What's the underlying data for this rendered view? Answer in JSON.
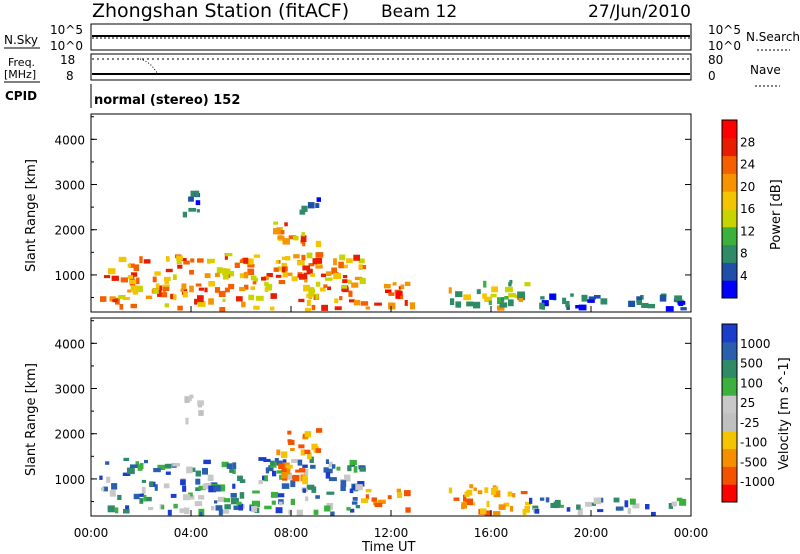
{
  "header": {
    "station": "Zhongshan Station (fitACF)",
    "beam": "Beam 12",
    "date": "27/Jun/2010"
  },
  "noise_panel": {
    "left_label": "N.Sky",
    "right_label": "N.Search",
    "left_ticks": [
      "10^5",
      "10^0"
    ],
    "right_ticks": [
      "10^5",
      "10^0"
    ]
  },
  "freq_panel": {
    "left_label_1": "Freq.",
    "left_label_2": "[MHz]",
    "right_label": "Nave",
    "left_ticks": [
      "18",
      "8"
    ],
    "right_ticks": [
      "80",
      "0"
    ]
  },
  "cpid": {
    "label": "CPID",
    "value": "normal (stereo) 152"
  },
  "colors": {
    "power_scale": [
      "#0000ff",
      "#1f4fa8",
      "#2f8a66",
      "#3cb03c",
      "#c8d400",
      "#f5c400",
      "#f59300",
      "#f55f00",
      "#e81c00",
      "#ff0000"
    ],
    "velocity_scale": [
      "#ff0000",
      "#f55200",
      "#f58f00",
      "#f5c400",
      "#c0c0c0",
      "#c8c8c8",
      "#3cb03c",
      "#2f8a66",
      "#2a5fae",
      "#1c3ccc"
    ]
  },
  "chart_data": [
    {
      "type": "heatmap",
      "title": "Power",
      "xlabel": "",
      "ylabel": "Slant Range [km]",
      "xlim": [
        "00:00",
        "24:00"
      ],
      "ylim": [
        180,
        4560
      ],
      "x_ticks": [
        "00:00",
        "04:00",
        "08:00",
        "12:00",
        "16:00",
        "20:00",
        "00:00"
      ],
      "y_ticks": [
        1000,
        2000,
        3000,
        4000
      ],
      "colorbar": {
        "label": "Power [dB]",
        "ticks": [
          "28",
          "24",
          "20",
          "16",
          "12",
          "8",
          "4"
        ]
      },
      "scatter_regions": [
        {
          "t_start": 0.3,
          "t_end": 10.8,
          "r_min": 200,
          "r_max": 1500,
          "level": "mixed",
          "dominant": "orange/red"
        },
        {
          "t_start": 7.2,
          "t_end": 9.0,
          "r_min": 1000,
          "r_max": 2200,
          "level": "high",
          "dominant": "orange/red"
        },
        {
          "t_start": 3.6,
          "t_end": 4.6,
          "r_min": 2300,
          "r_max": 2900,
          "level": "low",
          "dominant": "blue"
        },
        {
          "t_start": 8.3,
          "t_end": 9.1,
          "r_min": 2400,
          "r_max": 2800,
          "level": "low",
          "dominant": "blue"
        },
        {
          "t_start": 10.8,
          "t_end": 12.8,
          "r_min": 250,
          "r_max": 900,
          "level": "high",
          "dominant": "red"
        },
        {
          "t_start": 14.2,
          "t_end": 17.5,
          "r_min": 250,
          "r_max": 900,
          "level": "mixed",
          "dominant": "green/orange"
        },
        {
          "t_start": 17.5,
          "t_end": 23.6,
          "r_min": 250,
          "r_max": 600,
          "level": "low",
          "dominant": "blue/green"
        }
      ]
    },
    {
      "type": "heatmap",
      "title": "Velocity",
      "xlabel": "Time UT",
      "ylabel": "Slant Range [km]",
      "xlim": [
        "00:00",
        "24:00"
      ],
      "ylim": [
        180,
        4560
      ],
      "x_ticks": [
        "00:00",
        "04:00",
        "08:00",
        "12:00",
        "16:00",
        "20:00",
        "00:00"
      ],
      "y_ticks": [
        1000,
        2000,
        3000,
        4000
      ],
      "colorbar": {
        "label": "Velocity [m s^-1]",
        "ticks": [
          "1000",
          "500",
          "100",
          "25",
          "-25",
          "-100",
          "-500",
          "-1000"
        ]
      },
      "scatter_regions": [
        {
          "t_start": 0.3,
          "t_end": 10.8,
          "r_min": 200,
          "r_max": 1500,
          "dominant": "green/blue/orange"
        },
        {
          "t_start": 7.2,
          "t_end": 9.0,
          "r_min": 1000,
          "r_max": 2200,
          "dominant": "orange"
        },
        {
          "t_start": 3.6,
          "t_end": 4.6,
          "r_min": 2300,
          "r_max": 2900,
          "dominant": "grey"
        },
        {
          "t_start": 10.8,
          "t_end": 12.8,
          "r_min": 250,
          "r_max": 900,
          "dominant": "orange"
        },
        {
          "t_start": 14.2,
          "t_end": 17.5,
          "r_min": 250,
          "r_max": 900,
          "dominant": "orange"
        },
        {
          "t_start": 17.5,
          "t_end": 23.6,
          "r_min": 250,
          "r_max": 600,
          "dominant": "green"
        }
      ]
    }
  ]
}
